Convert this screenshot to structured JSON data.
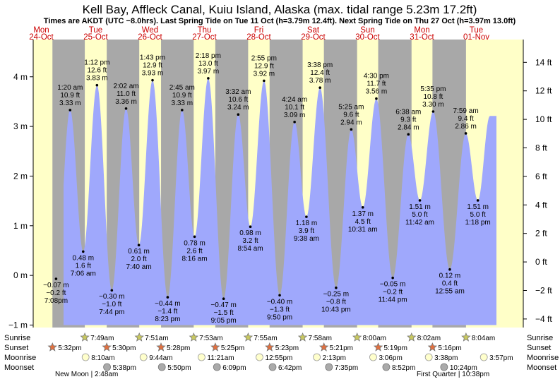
{
  "chart_data": {
    "type": "area",
    "title": "Kell Bay, Affleck Canal, Kuiu Island, Alaska (max. tidal range 5.23m 17.2ft)",
    "subtitle": "Times are AKDT (UTC −8.0hrs). Last Spring Tide on Tue 11 Oct (h=3.79m 12.4ft). Next Spring Tide on Thu 27 Oct (h=3.97m 13.0ft)",
    "colors": {
      "water": "#9fa8fc",
      "day": "#ffffc8",
      "night": "#a8a8a8",
      "marker": "#000000",
      "dates": "#cc0000"
    },
    "ylim_m": [
      -1.05,
      4.75
    ],
    "ylim_ft": [
      -4.6,
      15.6
    ],
    "left_ticks": [
      {
        "v": -1,
        "label": "−1 m"
      },
      {
        "v": 0,
        "label": "0 m"
      },
      {
        "v": 1,
        "label": "1 m"
      },
      {
        "v": 2,
        "label": "2 m"
      },
      {
        "v": 3,
        "label": "3 m"
      },
      {
        "v": 4,
        "label": "4 m"
      }
    ],
    "right_ticks": [
      {
        "v": -4,
        "label": "−4 ft"
      },
      {
        "v": -2,
        "label": "−2 ft"
      },
      {
        "v": 0,
        "label": "0 ft"
      },
      {
        "v": 2,
        "label": "2 ft"
      },
      {
        "v": 4,
        "label": "4 ft"
      },
      {
        "v": 6,
        "label": "6 ft"
      },
      {
        "v": 8,
        "label": "8 ft"
      },
      {
        "v": 10,
        "label": "10 ft"
      },
      {
        "v": 12,
        "label": "12 ft"
      },
      {
        "v": 14,
        "label": "14 ft"
      }
    ],
    "days": [
      {
        "name": "Mon",
        "date": "24-Oct"
      },
      {
        "name": "Tue",
        "date": "25-Oct"
      },
      {
        "name": "Wed",
        "date": "26-Oct"
      },
      {
        "name": "Thu",
        "date": "27-Oct"
      },
      {
        "name": "Fri",
        "date": "28-Oct"
      },
      {
        "name": "Sat",
        "date": "29-Oct"
      },
      {
        "name": "Sun",
        "date": "30-Oct"
      },
      {
        "name": "Mon",
        "date": "31-Oct"
      },
      {
        "name": "Tue",
        "date": "01-Nov"
      }
    ],
    "tides": [
      {
        "type": "low",
        "day": 0,
        "time": "7:08pm",
        "m": "−0.07 m",
        "ft": "−0.2 ft",
        "value": -0.07
      },
      {
        "type": "high",
        "day": 1,
        "time": "1:20 am",
        "m": "3.33 m",
        "ft": "10.9 ft",
        "value": 3.33
      },
      {
        "type": "low",
        "day": 1,
        "time": "7:06 am",
        "m": "0.48 m",
        "ft": "1.6 ft",
        "value": 0.48
      },
      {
        "type": "high",
        "day": 1,
        "time": "1:12 pm",
        "m": "3.83 m",
        "ft": "12.6 ft",
        "value": 3.83
      },
      {
        "type": "low",
        "day": 1,
        "time": "7:44 pm",
        "m": "−0.30 m",
        "ft": "−1.0 ft",
        "value": -0.3
      },
      {
        "type": "high",
        "day": 2,
        "time": "2:02 am",
        "m": "3.36 m",
        "ft": "11.0 ft",
        "value": 3.36
      },
      {
        "type": "low",
        "day": 2,
        "time": "7:40 am",
        "m": "0.61 m",
        "ft": "2.0 ft",
        "value": 0.61
      },
      {
        "type": "high",
        "day": 2,
        "time": "1:43 pm",
        "m": "3.93 m",
        "ft": "12.9 ft",
        "value": 3.93
      },
      {
        "type": "low",
        "day": 2,
        "time": "8:23 pm",
        "m": "−0.44 m",
        "ft": "−1.4 ft",
        "value": -0.44
      },
      {
        "type": "high",
        "day": 3,
        "time": "2:45 am",
        "m": "3.33 m",
        "ft": "10.9 ft",
        "value": 3.33
      },
      {
        "type": "low",
        "day": 3,
        "time": "8:16 am",
        "m": "0.78 m",
        "ft": "2.6 ft",
        "value": 0.78
      },
      {
        "type": "high",
        "day": 3,
        "time": "2:18 pm",
        "m": "3.97 m",
        "ft": "13.0 ft",
        "value": 3.97
      },
      {
        "type": "low",
        "day": 3,
        "time": "9:05 pm",
        "m": "−0.47 m",
        "ft": "−1.5 ft",
        "value": -0.47
      },
      {
        "type": "high",
        "day": 4,
        "time": "3:32 am",
        "m": "3.24 m",
        "ft": "10.6 ft",
        "value": 3.24
      },
      {
        "type": "low",
        "day": 4,
        "time": "8:54 am",
        "m": "0.98 m",
        "ft": "3.2 ft",
        "value": 0.98
      },
      {
        "type": "high",
        "day": 4,
        "time": "2:55 pm",
        "m": "3.92 m",
        "ft": "12.9 ft",
        "value": 3.92
      },
      {
        "type": "low",
        "day": 4,
        "time": "9:50 pm",
        "m": "−0.40 m",
        "ft": "−1.3 ft",
        "value": -0.4
      },
      {
        "type": "high",
        "day": 5,
        "time": "4:24 am",
        "m": "3.09 m",
        "ft": "10.1 ft",
        "value": 3.09
      },
      {
        "type": "low",
        "day": 5,
        "time": "9:38 am",
        "m": "1.18 m",
        "ft": "3.9 ft",
        "value": 1.18
      },
      {
        "type": "high",
        "day": 5,
        "time": "3:38 pm",
        "m": "3.78 m",
        "ft": "12.4 ft",
        "value": 3.78
      },
      {
        "type": "low",
        "day": 5,
        "time": "10:43 pm",
        "m": "−0.25 m",
        "ft": "−0.8 ft",
        "value": -0.25
      },
      {
        "type": "high",
        "day": 6,
        "time": "5:25 am",
        "m": "2.94 m",
        "ft": "9.6 ft",
        "value": 2.94
      },
      {
        "type": "low",
        "day": 6,
        "time": "10:31 am",
        "m": "1.37 m",
        "ft": "4.5 ft",
        "value": 1.37
      },
      {
        "type": "high",
        "day": 6,
        "time": "4:30 pm",
        "m": "3.56 m",
        "ft": "11.7 ft",
        "value": 3.56
      },
      {
        "type": "low",
        "day": 6,
        "time": "11:44 pm",
        "m": "−0.05 m",
        "ft": "−0.2 ft",
        "value": -0.05
      },
      {
        "type": "high",
        "day": 7,
        "time": "6:38 am",
        "m": "2.84 m",
        "ft": "9.3 ft",
        "value": 2.84
      },
      {
        "type": "low",
        "day": 7,
        "time": "11:42 am",
        "m": "1.51 m",
        "ft": "5.0 ft",
        "value": 1.51
      },
      {
        "type": "high",
        "day": 7,
        "time": "5:35 pm",
        "m": "3.30 m",
        "ft": "10.8 ft",
        "value": 3.3
      },
      {
        "type": "low",
        "day": 8,
        "time": "12:55 am",
        "m": "0.12 m",
        "ft": "0.4 ft",
        "value": 0.12
      },
      {
        "type": "high",
        "day": 8,
        "time": "7:59 am",
        "m": "2.86 m",
        "ft": "9.4 ft",
        "value": 2.86
      },
      {
        "type": "low",
        "day": 8,
        "time": "1:18 pm",
        "m": "1.51 m",
        "ft": "5.0 ft",
        "value": 1.51
      }
    ],
    "rows": {
      "sunrise": "Sunrise",
      "sunset": "Sunset",
      "moonrise": "Moonrise",
      "moonset": "Moonset"
    },
    "sunrise": [
      {
        "day": 1,
        "time": "7:49am"
      },
      {
        "day": 2,
        "time": "7:51am"
      },
      {
        "day": 3,
        "time": "7:53am"
      },
      {
        "day": 4,
        "time": "7:55am"
      },
      {
        "day": 5,
        "time": "7:58am"
      },
      {
        "day": 6,
        "time": "8:00am"
      },
      {
        "day": 7,
        "time": "8:02am"
      },
      {
        "day": 8,
        "time": "8:04am"
      }
    ],
    "sunset": [
      {
        "day": 0,
        "time": "5:32pm"
      },
      {
        "day": 1,
        "time": "5:30pm"
      },
      {
        "day": 2,
        "time": "5:28pm"
      },
      {
        "day": 3,
        "time": "5:25pm"
      },
      {
        "day": 4,
        "time": "5:23pm"
      },
      {
        "day": 5,
        "time": "5:21pm"
      },
      {
        "day": 6,
        "time": "5:19pm"
      },
      {
        "day": 7,
        "time": "5:16pm"
      }
    ],
    "moonrise": [
      {
        "day": 1,
        "time": "8:10am"
      },
      {
        "day": 2,
        "time": "9:44am"
      },
      {
        "day": 3,
        "time": "11:21am"
      },
      {
        "day": 4,
        "time": "12:55pm"
      },
      {
        "day": 5,
        "time": "2:13pm"
      },
      {
        "day": 6,
        "time": "3:06pm"
      },
      {
        "day": 7,
        "time": "3:38pm"
      },
      {
        "day": 8,
        "time": "3:57pm"
      }
    ],
    "moonset": [
      {
        "day": 1,
        "time": "5:38pm"
      },
      {
        "day": 2,
        "time": "5:50pm"
      },
      {
        "day": 3,
        "time": "6:09pm"
      },
      {
        "day": 4,
        "time": "6:42pm"
      },
      {
        "day": 5,
        "time": "7:35pm"
      },
      {
        "day": 6,
        "time": "8:52pm"
      },
      {
        "day": 7,
        "time": "10:24pm"
      }
    ],
    "moon_phases": [
      {
        "day": 0,
        "time": "New Moon | 2:48am"
      },
      {
        "day": 7,
        "time": "First Quarter | 10:38pm"
      }
    ]
  }
}
